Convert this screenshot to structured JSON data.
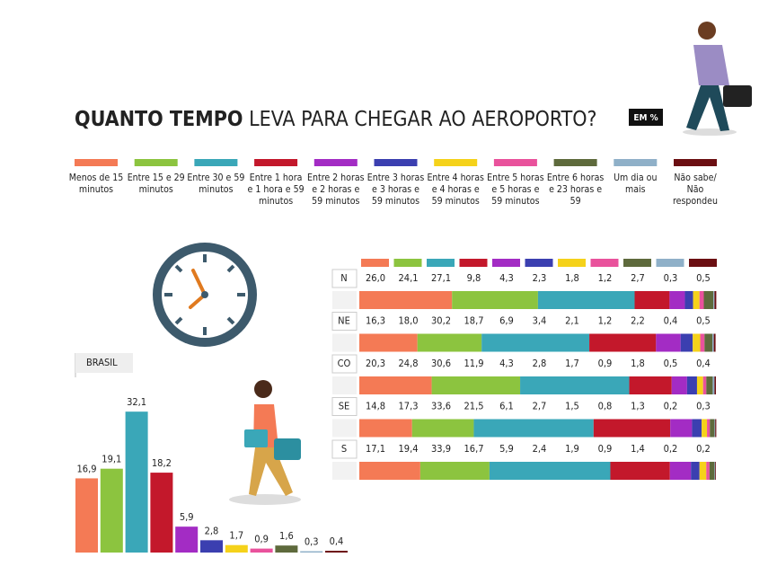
{
  "chart_data": [
    {
      "type": "stacked_hbar",
      "title_parts": [
        "QUANTO TEMPO",
        "LEVA PARA CHEGAR AO AEROPORTO?"
      ],
      "unit_label": "EM %",
      "categories": [
        "N",
        "NE",
        "CO",
        "SE",
        "S"
      ],
      "xlim": [
        0,
        100
      ],
      "series": [
        {
          "name": "Menos de 15 minutos",
          "color": "#f47a55",
          "values": [
            26.0,
            16.3,
            20.3,
            14.8,
            17.1
          ],
          "value_labels": [
            "26,0",
            "16,3",
            "20,3",
            "14,8",
            "17,1"
          ]
        },
        {
          "name": "Entre 15 e 29 minutos",
          "color": "#8cc43f",
          "values": [
            24.1,
            18.0,
            24.8,
            17.3,
            19.4
          ],
          "value_labels": [
            "24,1",
            "18,0",
            "24,8",
            "17,3",
            "19,4"
          ]
        },
        {
          "name": "Entre 30 e 59 minutos",
          "color": "#3aa7b8",
          "values": [
            27.1,
            30.2,
            30.6,
            33.6,
            33.9
          ],
          "value_labels": [
            "27,1",
            "30,2",
            "30,6",
            "33,6",
            "33,9"
          ]
        },
        {
          "name": "Entre 1 hora e 1 hora e 59 minutos",
          "color": "#c3182b",
          "values": [
            9.8,
            18.7,
            11.9,
            21.5,
            16.7
          ],
          "value_labels": [
            "9,8",
            "18,7",
            "11,9",
            "21,5",
            "16,7"
          ]
        },
        {
          "name": "Entre 2 horas e 2 horas e 59 minutos",
          "color": "#a32cc4",
          "values": [
            4.3,
            6.9,
            4.3,
            6.1,
            5.9
          ],
          "value_labels": [
            "4,3",
            "6,9",
            "4,3",
            "6,1",
            "5,9"
          ]
        },
        {
          "name": "Entre 3 horas e 3 horas e 59 minutos",
          "color": "#3b3fb0",
          "values": [
            2.3,
            3.4,
            2.8,
            2.7,
            2.4
          ],
          "value_labels": [
            "2,3",
            "3,4",
            "2,8",
            "2,7",
            "2,4"
          ]
        },
        {
          "name": "Entre 4 horas e 4 horas e 59 minutos",
          "color": "#f5d21a",
          "values": [
            1.8,
            2.1,
            1.7,
            1.5,
            1.9
          ],
          "value_labels": [
            "1,8",
            "2,1",
            "1,7",
            "1,5",
            "1,9"
          ]
        },
        {
          "name": "Entre 5 horas e 5 horas e 59 minutos",
          "color": "#e9529c",
          "values": [
            1.2,
            1.2,
            0.9,
            0.8,
            0.9
          ],
          "value_labels": [
            "1,2",
            "1,2",
            "0,9",
            "0,8",
            "0,9"
          ]
        },
        {
          "name": "Entre 6 horas e 23 horas e 59",
          "color": "#5e6a3c",
          "values": [
            2.7,
            2.2,
            1.8,
            1.3,
            1.4
          ],
          "value_labels": [
            "2,7",
            "2,2",
            "1,8",
            "1,3",
            "1,4"
          ]
        },
        {
          "name": "Um dia ou mais",
          "color": "#8fb0c8",
          "values": [
            0.3,
            0.4,
            0.5,
            0.2,
            0.2
          ],
          "value_labels": [
            "0,3",
            "0,4",
            "0,5",
            "0,2",
            "0,2"
          ]
        },
        {
          "name": "Não sabe/ Não respondeu",
          "color": "#6b0f12",
          "values": [
            0.5,
            0.5,
            0.4,
            0.3,
            0.2
          ],
          "value_labels": [
            "0,5",
            "0,5",
            "0,4",
            "0,3",
            "0,2"
          ]
        }
      ]
    },
    {
      "type": "bar",
      "title": "BRASIL",
      "ylim": [
        0,
        35
      ],
      "values": [
        16.9,
        19.1,
        32.1,
        18.2,
        5.9,
        2.8,
        1.7,
        0.9,
        1.6,
        0.3,
        0.4
      ],
      "value_labels": [
        "16,9",
        "19,1",
        "32,1",
        "18,2",
        "5,9",
        "2,8",
        "1,7",
        "0,9",
        "1,6",
        "0,3",
        "0,4"
      ],
      "colors": [
        "#f47a55",
        "#8cc43f",
        "#3aa7b8",
        "#c3182b",
        "#a32cc4",
        "#3b3fb0",
        "#f5d21a",
        "#e9529c",
        "#5e6a3c",
        "#8fb0c8",
        "#6b0f12"
      ]
    }
  ]
}
